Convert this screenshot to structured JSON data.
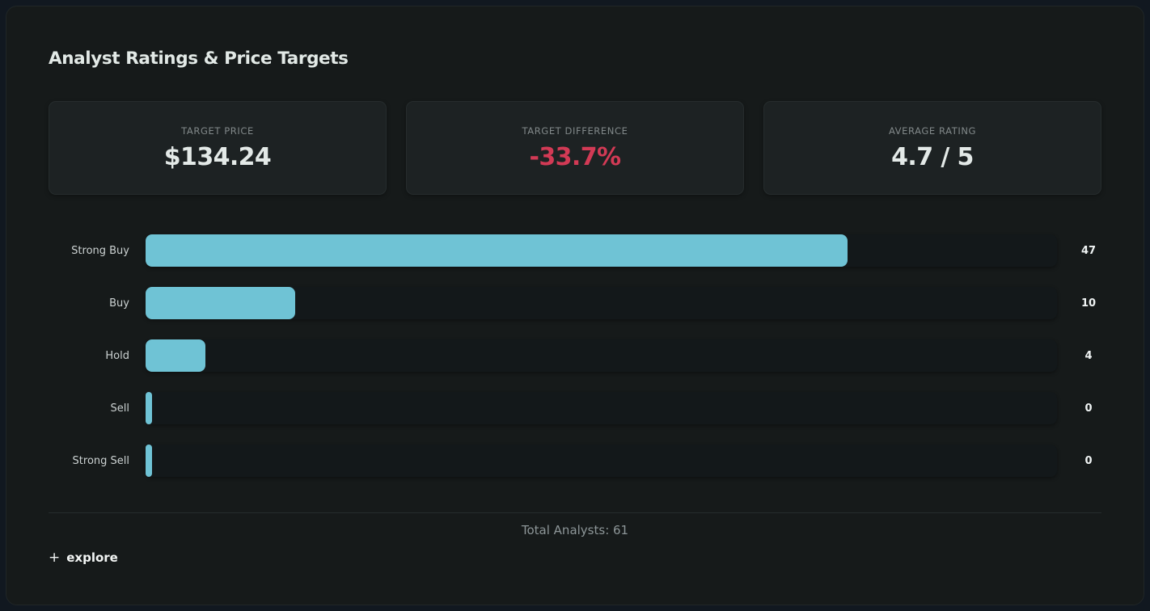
{
  "title": "Analyst Ratings & Price Targets",
  "cards": [
    {
      "label": "TARGET PRICE",
      "value": "$134.24"
    },
    {
      "label": "TARGET DIFFERENCE",
      "value": "-33.7%",
      "color": "#d23a55"
    },
    {
      "label": "AVERAGE RATING",
      "value": "4.7 / 5"
    }
  ],
  "chart_data": {
    "type": "bar",
    "orientation": "horizontal",
    "title": "Analyst Ratings & Price Targets",
    "categories": [
      "Strong Buy",
      "Buy",
      "Hold",
      "Sell",
      "Strong Sell"
    ],
    "values": [
      47,
      10,
      4,
      0,
      0
    ],
    "total": 61,
    "bar_color": "#6fc3d5",
    "track_color": "#13181a",
    "xlim": [
      0,
      61
    ]
  },
  "footer": {
    "total_label": "Total Analysts: 61",
    "plus_icon": "+",
    "explore_label": "explore"
  }
}
